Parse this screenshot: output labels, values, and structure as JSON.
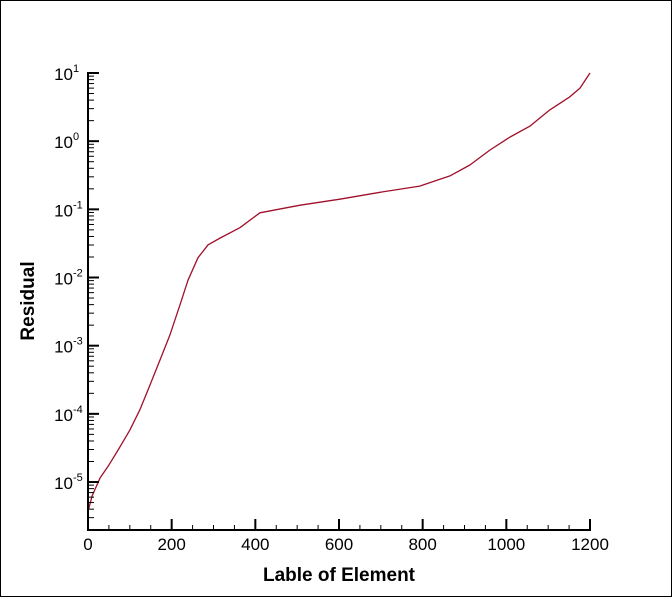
{
  "chart_data": {
    "type": "line",
    "title": "",
    "xlabel": "Lable of Element",
    "ylabel": "Residual",
    "xscale": "linear",
    "yscale": "log",
    "xlim": [
      0,
      1200
    ],
    "ylim": [
      2e-06,
      10
    ],
    "grid": false,
    "legend": null,
    "x_ticks": [
      0,
      200,
      400,
      600,
      800,
      1000,
      1200
    ],
    "x_tick_labels": [
      "0",
      "200",
      "400",
      "600",
      "800",
      "1000",
      "1200"
    ],
    "y_ticks": [
      1e-05,
      0.0001,
      0.001,
      0.01,
      0.1,
      1,
      10
    ],
    "y_tick_labels": [
      {
        "base": "10",
        "exp": "-5"
      },
      {
        "base": "10",
        "exp": "-4"
      },
      {
        "base": "10",
        "exp": "-3"
      },
      {
        "base": "10",
        "exp": "-2"
      },
      {
        "base": "10",
        "exp": "-1"
      },
      {
        "base": "10",
        "exp": "0"
      },
      {
        "base": "10",
        "exp": "1"
      }
    ],
    "series": [
      {
        "name": "Residual",
        "color": "#a0102a",
        "x": [
          0,
          1,
          10,
          29,
          48,
          72,
          100,
          124,
          148,
          172,
          196,
          220,
          239,
          263,
          287,
          316,
          363,
          411,
          507,
          602,
          698,
          793,
          865,
          913,
          961,
          1009,
          1056,
          1104,
          1152,
          1176,
          1200
        ],
        "y": [
          2e-06,
          3.9e-06,
          6.3e-06,
          1.15e-05,
          1.7e-05,
          2.95e-05,
          5.75e-05,
          0.000115,
          0.000263,
          0.000617,
          0.00145,
          0.00398,
          0.00912,
          0.0195,
          0.0302,
          0.038,
          0.0537,
          0.0891,
          0.115,
          0.141,
          0.178,
          0.219,
          0.309,
          0.447,
          0.741,
          1.15,
          1.66,
          2.88,
          4.47,
          6.0,
          10.0
        ]
      }
    ]
  },
  "axes": {
    "x_title": "Lable of Element",
    "y_title": "Residual"
  }
}
